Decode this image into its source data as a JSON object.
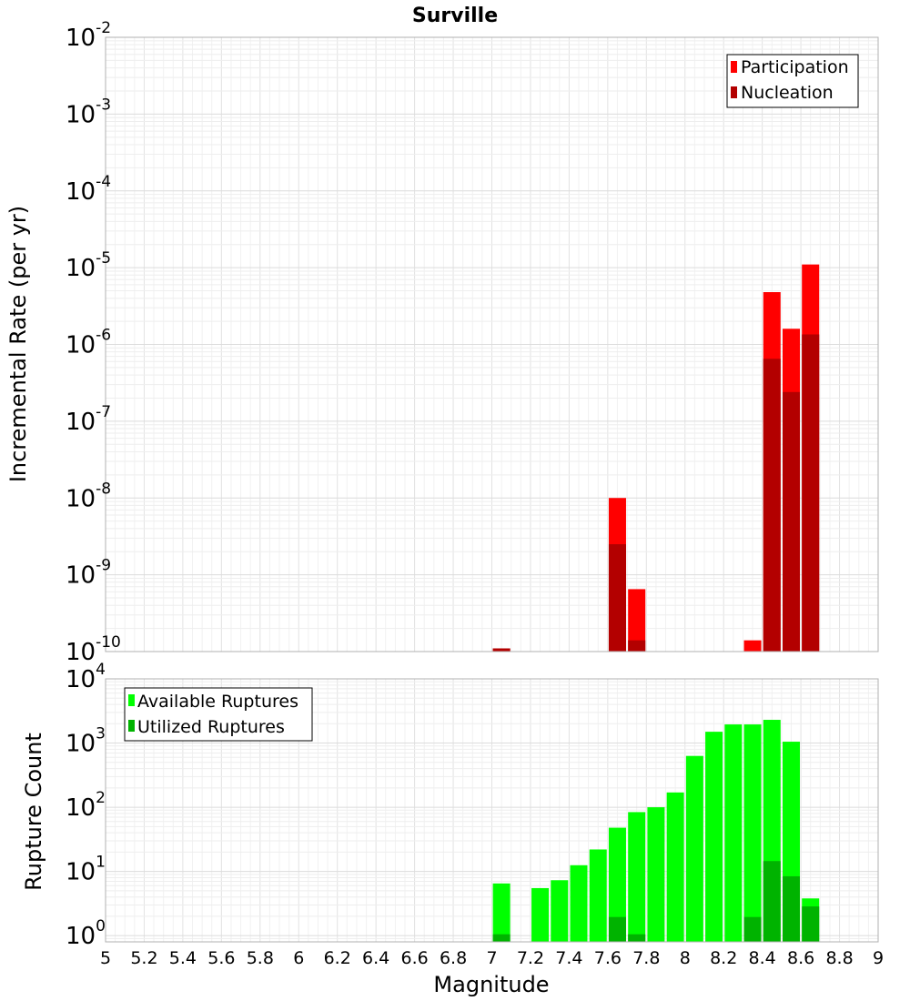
{
  "chart_data": [
    {
      "type": "bar",
      "title": "Surville",
      "xlabel": "",
      "ylabel": "Incremental Rate (per yr)",
      "yscale": "log",
      "ylim": [
        1e-10,
        0.01
      ],
      "xlim": [
        5,
        9
      ],
      "grid": true,
      "legend_position": "top-right",
      "y_tick_exponents": [
        "-10",
        "-9",
        "-8",
        "-7",
        "-6",
        "-5",
        "-4",
        "-3",
        "-2"
      ],
      "series": [
        {
          "name": "Participation",
          "color": "#ff0000",
          "x": [
            7.05,
            7.65,
            7.75,
            8.35,
            8.45,
            8.55,
            8.65
          ],
          "values": [
            1.1e-10,
            1e-08,
            6.5e-10,
            1.4e-10,
            4.8e-06,
            1.6e-06,
            1.1e-05
          ]
        },
        {
          "name": "Nucleation",
          "color": "#b30000",
          "x": [
            7.05,
            7.65,
            7.75,
            8.45,
            8.55,
            8.65
          ],
          "values": [
            1.1e-10,
            2.5e-09,
            1.4e-10,
            6.5e-07,
            2.4e-07,
            1.35e-06
          ]
        }
      ]
    },
    {
      "type": "bar",
      "title": "",
      "xlabel": "Magnitude",
      "ylabel": "Rupture Count",
      "yscale": "log",
      "ylim": [
        0.8,
        10000
      ],
      "xlim": [
        5,
        9
      ],
      "grid": true,
      "legend_position": "top-left",
      "y_tick_exponents": [
        "0",
        "1",
        "2",
        "3",
        "4"
      ],
      "x_ticks": [
        "5",
        "5.2",
        "5.4",
        "5.6",
        "5.8",
        "6",
        "6.2",
        "6.4",
        "6.6",
        "6.8",
        "7",
        "7.2",
        "7.4",
        "7.6",
        "7.8",
        "8",
        "8.2",
        "8.4",
        "8.6",
        "8.8",
        "9"
      ],
      "series": [
        {
          "name": "Available Ruptures",
          "color": "#00ff00",
          "x": [
            7.05,
            7.25,
            7.35,
            7.45,
            7.55,
            7.65,
            7.75,
            7.85,
            7.95,
            8.05,
            8.15,
            8.25,
            8.35,
            8.45,
            8.55,
            8.65
          ],
          "values": [
            6.5,
            5.5,
            7.3,
            12.5,
            22,
            48,
            84,
            100,
            170,
            630,
            1500,
            1950,
            1950,
            2300,
            1050,
            3.8
          ]
        },
        {
          "name": "Utilized Ruptures",
          "color": "#00b300",
          "x": [
            7.05,
            7.65,
            7.75,
            8.35,
            8.45,
            8.55,
            8.65
          ],
          "values": [
            1.05,
            1.95,
            1.05,
            1.95,
            14.5,
            8.4,
            2.85
          ]
        }
      ]
    }
  ]
}
